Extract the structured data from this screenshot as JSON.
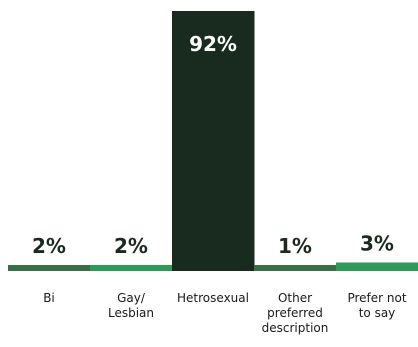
{
  "chart_data": {
    "type": "bar",
    "categories": [
      "Bi",
      "Gay/ Lesbian",
      "Hetrosexual",
      "Other preferred description",
      "Prefer not to say"
    ],
    "category_lines": [
      [
        "Bi"
      ],
      [
        "Gay/",
        "Lesbian"
      ],
      [
        "Hetrosexual"
      ],
      [
        "Other",
        "preferred",
        "description"
      ],
      [
        "Prefer not",
        "to say"
      ]
    ],
    "values": [
      2,
      2,
      92,
      1,
      3
    ],
    "value_labels": [
      "2%",
      "2%",
      "92%",
      "1%",
      "3%"
    ],
    "ylim": [
      0,
      100
    ],
    "colors": [
      "#3a6e45",
      "#2f9a58",
      "#182b1e",
      "#3a6e45",
      "#2f9a58"
    ],
    "label_colors": [
      "#1b2a1f",
      "#1b2a1f",
      "#ffffff",
      "#1b2a1f",
      "#1b2a1f"
    ],
    "title": "",
    "xlabel": "",
    "ylabel": "",
    "grid": false,
    "legend": "none"
  }
}
